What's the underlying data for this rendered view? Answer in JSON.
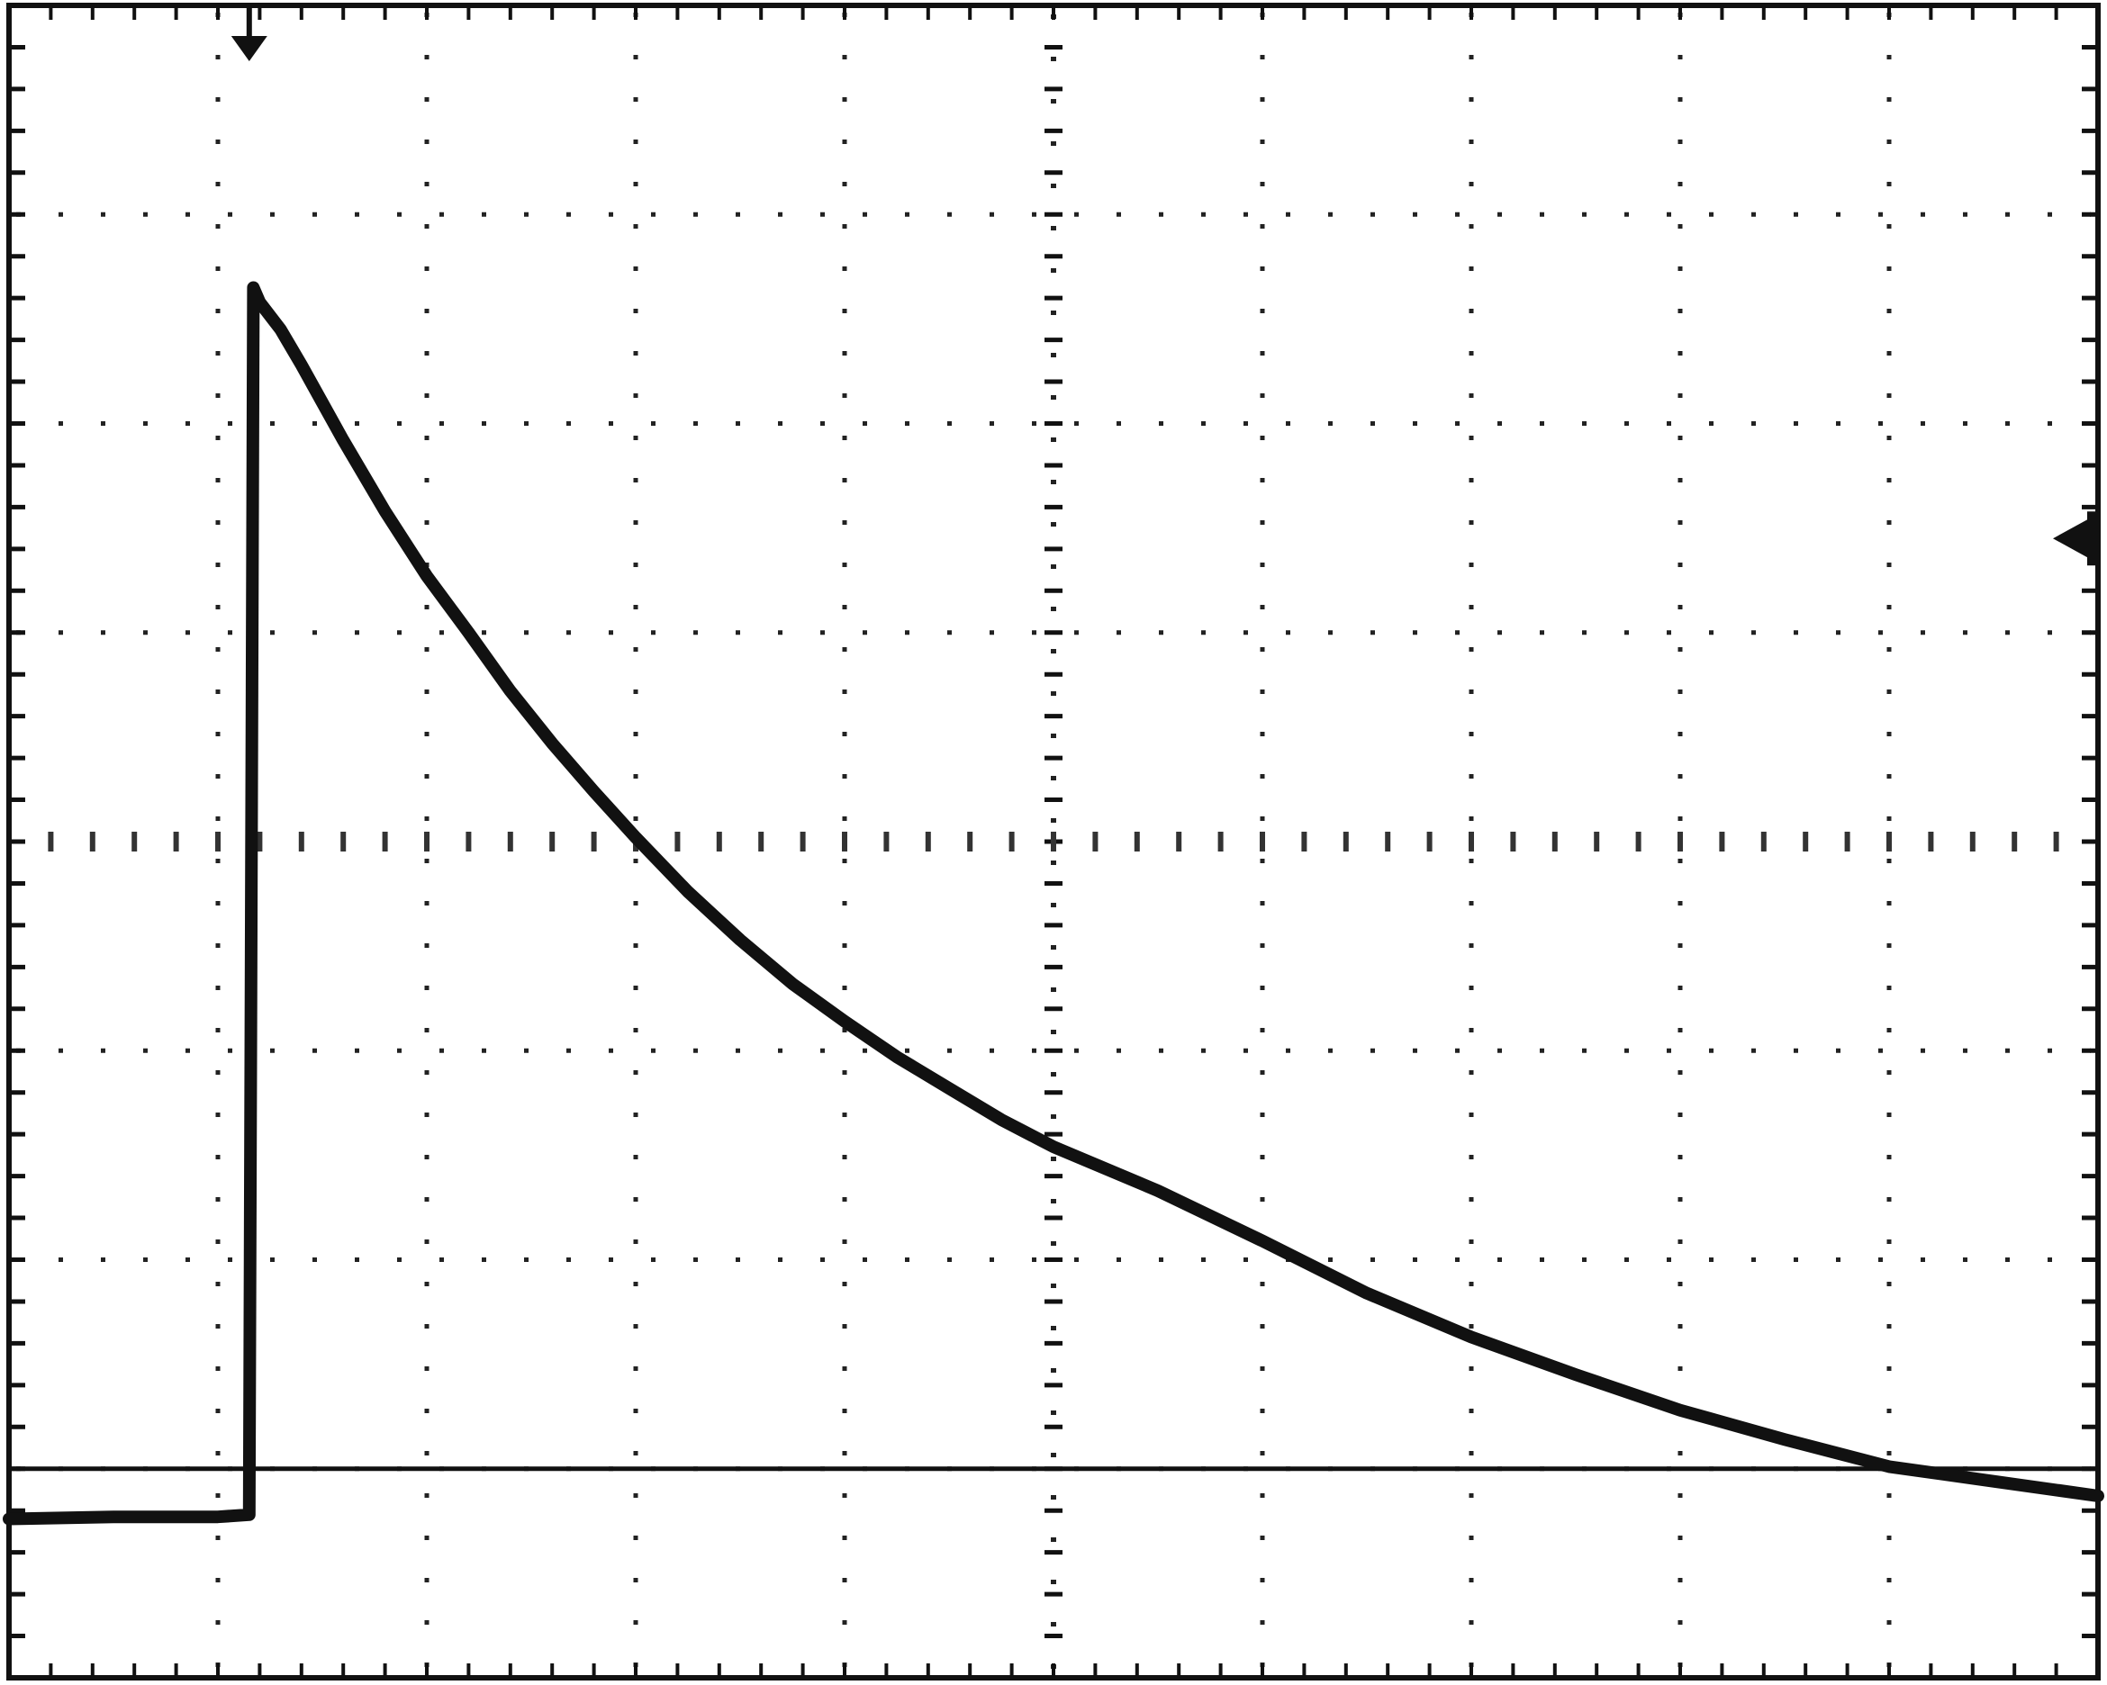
{
  "chart_data": {
    "type": "line",
    "title": "",
    "xlabel": "",
    "ylabel": "",
    "grid": true,
    "grid_style": "dotted",
    "x_divisions": 10,
    "y_divisions": 8,
    "xlim": [
      0,
      10
    ],
    "ylim": [
      -4,
      4
    ],
    "trace_color": "#111111",
    "grid_color": "#222222",
    "background_color": "#ffffff",
    "reference_level": -3.0,
    "trigger_position": 1.15,
    "trigger_level": 1.45,
    "series": [
      {
        "x": [
          0.0,
          0.5,
          1.0,
          1.15,
          1.17,
          1.2,
          1.3,
          1.4,
          1.5,
          1.6,
          1.8,
          2.0,
          2.2,
          2.4,
          2.6,
          2.8,
          3.0,
          3.25,
          3.5,
          3.75,
          4.0,
          4.25,
          4.5,
          4.75,
          5.0,
          5.5,
          6.0,
          6.5,
          7.0,
          7.5,
          8.0,
          8.5,
          9.0,
          9.5,
          10.0
        ],
        "values": [
          -3.24,
          -3.23,
          -3.23,
          -3.22,
          2.65,
          2.58,
          2.45,
          2.28,
          2.1,
          1.92,
          1.58,
          1.27,
          1.0,
          0.72,
          0.47,
          0.24,
          0.02,
          -0.24,
          -0.47,
          -0.68,
          -0.86,
          -1.03,
          -1.18,
          -1.33,
          -1.46,
          -1.67,
          -1.91,
          -2.16,
          -2.37,
          -2.55,
          -2.72,
          -2.86,
          -2.99,
          -3.06,
          -3.13
        ]
      }
    ]
  }
}
